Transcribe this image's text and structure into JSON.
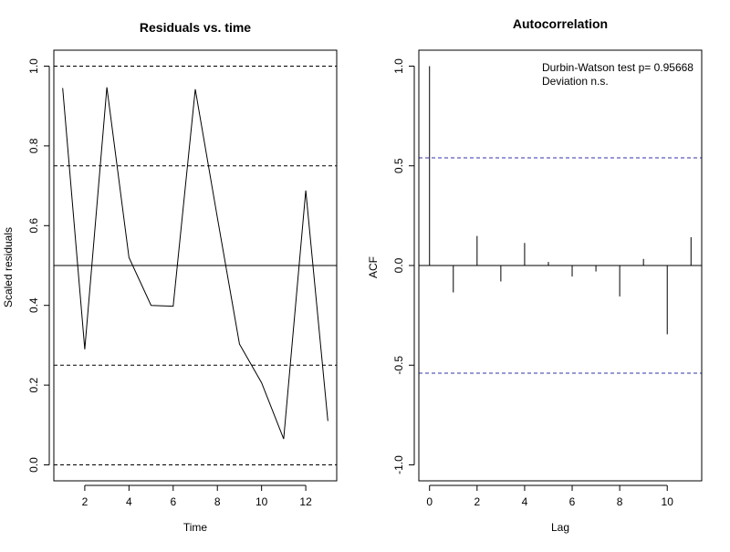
{
  "chart_data": [
    {
      "type": "line",
      "title": "Residuals vs. time",
      "xlabel": "Time",
      "ylabel": "Scaled residuals",
      "xlim": [
        0.6,
        13.4
      ],
      "ylim": [
        -0.04,
        1.04
      ],
      "xticks": [
        2,
        4,
        6,
        8,
        10,
        12
      ],
      "yticks": [
        0.0,
        0.2,
        0.4,
        0.6,
        0.8,
        1.0
      ],
      "xtick_labels": [
        "2",
        "4",
        "6",
        "8",
        "10",
        "12"
      ],
      "ytick_labels": [
        "0.0",
        "0.2",
        "0.4",
        "0.6",
        "0.8",
        "1.0"
      ],
      "x": [
        1,
        2,
        3,
        4,
        5,
        6,
        7,
        8,
        9,
        10,
        11,
        12,
        13
      ],
      "values": [
        0.945,
        0.29,
        0.947,
        0.52,
        0.4,
        0.398,
        0.942,
        0.62,
        0.303,
        0.206,
        0.065,
        0.688,
        0.11
      ],
      "reference_lines": [
        {
          "y": 0.5,
          "style": "solid",
          "color": "#000000"
        },
        {
          "y": 0.0,
          "style": "dashed",
          "color": "#000000"
        },
        {
          "y": 0.25,
          "style": "dashed",
          "color": "#000000"
        },
        {
          "y": 0.75,
          "style": "dashed",
          "color": "#000000"
        },
        {
          "y": 1.0,
          "style": "dashed",
          "color": "#000000"
        }
      ],
      "grid": false
    },
    {
      "type": "bar",
      "title": "Autocorrelation",
      "xlabel": "Lag",
      "ylabel": "ACF",
      "xlim": [
        -0.45,
        11.45
      ],
      "ylim": [
        -1.08,
        1.08
      ],
      "xticks": [
        0,
        2,
        4,
        6,
        8,
        10
      ],
      "yticks": [
        -1.0,
        -0.5,
        0.0,
        0.5,
        1.0
      ],
      "xtick_labels": [
        "0",
        "2",
        "4",
        "6",
        "8",
        "10"
      ],
      "ytick_labels": [
        "-1.0",
        "-0.5",
        "0.0",
        "0.5",
        "1.0"
      ],
      "lags": [
        0,
        1,
        2,
        3,
        4,
        5,
        6,
        7,
        8,
        9,
        10,
        11
      ],
      "values": [
        1.0,
        -0.135,
        0.148,
        -0.08,
        0.113,
        0.018,
        -0.055,
        -0.03,
        -0.155,
        0.033,
        -0.345,
        0.142
      ],
      "confidence_bounds": [
        0.54,
        -0.54
      ],
      "bound_color": "#3333aa",
      "annotations": [
        "Durbin-Watson test  p= 0.95668",
        "Deviation  n.s."
      ],
      "grid": false
    }
  ]
}
